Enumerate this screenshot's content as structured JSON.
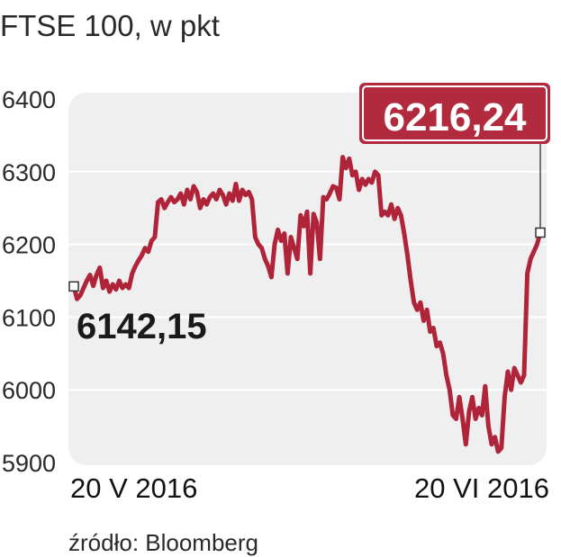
{
  "chart_data": {
    "type": "line",
    "title": "FTSE 100, w pkt",
    "source": "źródło: Bloomberg",
    "ylim": [
      5900,
      6400
    ],
    "yticks": [
      {
        "value": 6400,
        "label": "6400"
      },
      {
        "value": 6300,
        "label": "6300"
      },
      {
        "value": 6200,
        "label": "6200"
      },
      {
        "value": 6100,
        "label": "6100"
      },
      {
        "value": 6000,
        "label": "6000"
      },
      {
        "value": 5900,
        "label": "5900"
      }
    ],
    "grid": true,
    "xlabels": {
      "start": "20 V 2016",
      "end": "20 VI 2016"
    },
    "start_value": {
      "value": 6142.15,
      "label": "6142,15"
    },
    "end_value": {
      "value": 6216.24,
      "label": "6216,24"
    },
    "colors": {
      "line": "#b0243a",
      "badge": "#b22a3d",
      "plot_background": "#efefef",
      "grid": "#ffffff"
    },
    "series": [
      {
        "values": [
          6142.15,
          6125,
          6130,
          6140,
          6150,
          6158,
          6143,
          6158,
          6168,
          6140,
          6150,
          6135,
          6145,
          6138,
          6150,
          6140,
          6145,
          6140,
          6160,
          6170,
          6178,
          6185,
          6195,
          6190,
          6205,
          6210,
          6258,
          6262,
          6250,
          6258,
          6265,
          6258,
          6262,
          6270,
          6255,
          6275,
          6262,
          6280,
          6272,
          6250,
          6262,
          6255,
          6265,
          6270,
          6262,
          6275,
          6268,
          6255,
          6270,
          6260,
          6283,
          6260,
          6275,
          6268,
          6272,
          6262,
          6210,
          6200,
          6195,
          6180,
          6170,
          6155,
          6200,
          6220,
          6205,
          6215,
          6160,
          6210,
          6195,
          6180,
          6240,
          6225,
          6245,
          6160,
          6242,
          6230,
          6180,
          6265,
          6262,
          6270,
          6280,
          6278,
          6262,
          6320,
          6305,
          6318,
          6295,
          6300,
          6275,
          6290,
          6282,
          6290,
          6285,
          6300,
          6295,
          6240,
          6245,
          6240,
          6255,
          6235,
          6250,
          6240,
          6215,
          6185,
          6150,
          6120,
          6110,
          6120,
          6095,
          6110,
          6080,
          6085,
          6060,
          6065,
          6050,
          6020,
          6000,
          5965,
          5960,
          5990,
          5960,
          5925,
          5970,
          5990,
          5960,
          5975,
          5965,
          6005,
          5950,
          5925,
          5935,
          5915,
          5920,
          5990,
          6025,
          6000,
          6030,
          6020,
          6010,
          6020,
          6160,
          6180,
          6190,
          6200,
          6216.24
        ]
      }
    ]
  }
}
